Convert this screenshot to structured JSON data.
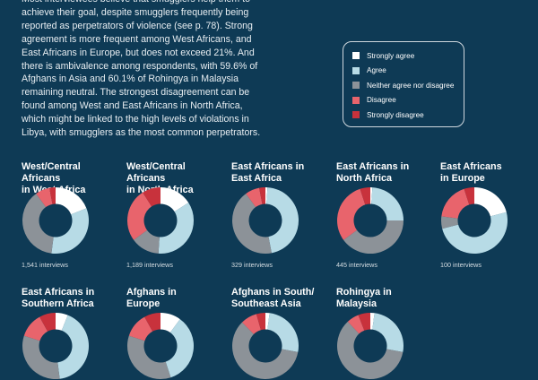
{
  "intro_text": "Most interviewees believe that smugglers help them to achieve their goal, despite smugglers frequently being reported as perpetrators of violence (see p. 78). Strong agreement is more frequent among West Africans, and East Africans in Europe, but does not exceed 21%. And there is ambivalence among respondents, with 59.6% of Afghans in Asia and 60.1% of Rohingya in Malaysia remaining neutral.  The strongest disagreement can be found among West and East Africans in North Africa, which might be linked to the high levels of violations in Libya, with smugglers as the most common perpetrators.",
  "legend": [
    {
      "label": "Strongly agree",
      "color": "#ffffff"
    },
    {
      "label": "Agree",
      "color": "#b7dbe6"
    },
    {
      "label": "Neither agree nor disagree",
      "color": "#8c9298"
    },
    {
      "label": "Disagree",
      "color": "#e8646c"
    },
    {
      "label": "Strongly disagree",
      "color": "#c8323c"
    }
  ],
  "chart_data": {
    "type": "pie",
    "style": "donut",
    "categories": [
      "Strongly agree",
      "Agree",
      "Neither agree nor disagree",
      "Disagree",
      "Strongly disagree"
    ],
    "colors": [
      "#ffffff",
      "#b7dbe6",
      "#8c9298",
      "#e8646c",
      "#c8323c"
    ],
    "charts": [
      {
        "title_lines": [
          "West/Central Africans",
          "in West Africa"
        ],
        "interviews": "1,541 interviews",
        "values": [
          19,
          33,
          38,
          7,
          3
        ]
      },
      {
        "title_lines": [
          "West/Central Africans",
          "in North Africa"
        ],
        "interviews": "1,189 interviews",
        "values": [
          16,
          35,
          14,
          26,
          9
        ]
      },
      {
        "title_lines": [
          "East Africans in",
          "East Africa"
        ],
        "interviews": "329 interviews",
        "values": [
          1,
          46,
          43,
          7,
          3
        ]
      },
      {
        "title_lines": [
          "East Africans in",
          "North Africa"
        ],
        "interviews": "445 interviews",
        "values": [
          1,
          24,
          40,
          30,
          5
        ]
      },
      {
        "title_lines": [
          "East Africans",
          "in Europe"
        ],
        "interviews": "100 interviews",
        "values": [
          21,
          50,
          6,
          18,
          5
        ]
      },
      {
        "title_lines": [
          "East Africans in",
          "Southern Africa"
        ],
        "interviews": "",
        "values": [
          6,
          42,
          32,
          12,
          8
        ]
      },
      {
        "title_lines": [
          "Afghans in",
          "Europe"
        ],
        "interviews": "",
        "values": [
          10,
          35,
          35,
          12,
          8
        ]
      },
      {
        "title_lines": [
          "Afghans in South/",
          "Southeast Asia"
        ],
        "interviews": "",
        "values": [
          2,
          26,
          59.6,
          8,
          4.4
        ]
      },
      {
        "title_lines": [
          "Rohingya in",
          "Malaysia"
        ],
        "interviews": "",
        "values": [
          2,
          26,
          60.1,
          6,
          5.9
        ]
      }
    ]
  }
}
